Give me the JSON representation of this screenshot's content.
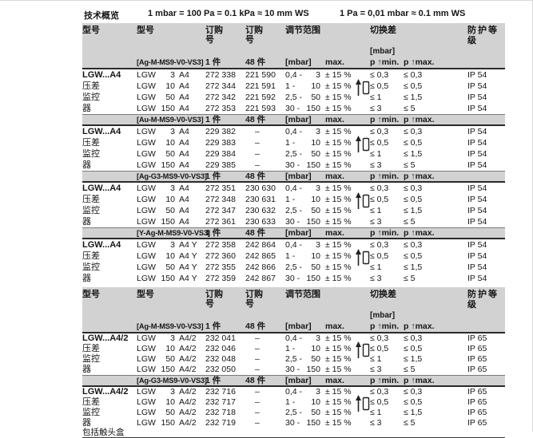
{
  "page": {
    "title": "技术概览",
    "conversion1": "1 mbar = 100 Pa = 0.1 kPa ≈ 10 mm WS",
    "conversion2": "1 Pa = 0,01 mbar ≈ 0.1 mm WS"
  },
  "colors": {
    "band_gray": "#d2d2d2",
    "rule_dark": "#2a2a2a",
    "text": "#161616"
  },
  "header": {
    "col_model_group": "型号",
    "col_model": "型号",
    "col_order": "订购号",
    "col_range": "调节范围",
    "col_diff": "切换差",
    "col_protection": "防护等级",
    "qty_single": "1 件",
    "qty_pack": "48 件",
    "diff_unit": "[mbar]",
    "range_unit": "[mbar]",
    "range_max": "max.",
    "p_min": "p ↑min.",
    "p_max": "p ↑max.",
    "icon": "pressure-rise-switch-icon"
  },
  "sections": [
    {
      "blocks": [
        {
          "code": "[Ag-M-MS9-V0-VS3]",
          "group_label": "LGW...A4",
          "group_sub": [
            "压差",
            "监控",
            "器"
          ],
          "rows": [
            {
              "series": "LGW",
              "size": "3",
              "variant": "A4",
              "order1": "272 338",
              "order2": "221 590",
              "range_lo": "0,4",
              "range_hi": "3",
              "tolerance": "± 15 %",
              "diff_min": "≤ 0,3",
              "diff_max": "≤ 0,3",
              "protection": "IP 54"
            },
            {
              "series": "LGW",
              "size": "10",
              "variant": "A4",
              "order1": "272 344",
              "order2": "221 591",
              "range_lo": "1",
              "range_hi": "10",
              "tolerance": "± 15 %",
              "diff_min": "≤ 0,5",
              "diff_max": "≤ 0,5",
              "protection": "IP 54"
            },
            {
              "series": "LGW",
              "size": "50",
              "variant": "A4",
              "order1": "272 342",
              "order2": "221 592",
              "range_lo": "2,5",
              "range_hi": "50",
              "tolerance": "± 15 %",
              "diff_min": "≤ 1",
              "diff_max": "≤ 1,5",
              "protection": "IP 54"
            },
            {
              "series": "LGW",
              "size": "150",
              "variant": "A4",
              "order1": "272 353",
              "order2": "221 593",
              "range_lo": "30",
              "range_hi": "150",
              "tolerance": "± 15 %",
              "diff_min": "≤ 3",
              "diff_max": "≤ 5",
              "protection": "IP 54"
            }
          ]
        },
        {
          "code": "[Au-M-MS9-V0-VS3]",
          "group_label": "LGW...A4",
          "group_sub": [
            "压差",
            "监控",
            "器"
          ],
          "rows": [
            {
              "series": "LGW",
              "size": "3",
              "variant": "A4",
              "order1": "229 382",
              "order2": "–",
              "range_lo": "0,4",
              "range_hi": "3",
              "tolerance": "± 15 %",
              "diff_min": "≤ 0,3",
              "diff_max": "≤ 0,3",
              "protection": "IP 54"
            },
            {
              "series": "LGW",
              "size": "10",
              "variant": "A4",
              "order1": "229 383",
              "order2": "–",
              "range_lo": "1",
              "range_hi": "10",
              "tolerance": "± 15 %",
              "diff_min": "≤ 0,5",
              "diff_max": "≤ 0,5",
              "protection": "IP 54"
            },
            {
              "series": "LGW",
              "size": "50",
              "variant": "A4",
              "order1": "229 384",
              "order2": "–",
              "range_lo": "2,5",
              "range_hi": "50",
              "tolerance": "± 15 %",
              "diff_min": "≤ 1",
              "diff_max": "≤ 1,5",
              "protection": "IP 54"
            },
            {
              "series": "LGW",
              "size": "150",
              "variant": "A4",
              "order1": "229 385",
              "order2": "–",
              "range_lo": "30",
              "range_hi": "150",
              "tolerance": "± 15 %",
              "diff_min": "≤ 3",
              "diff_max": "≤ 5",
              "protection": "IP 54"
            }
          ]
        },
        {
          "code": "[Ag-G3-MS9-V0-VS3]",
          "group_label": "LGW...A4",
          "group_sub": [
            "压差",
            "监控",
            "器"
          ],
          "rows": [
            {
              "series": "LGW",
              "size": "3",
              "variant": "A4",
              "order1": "272 351",
              "order2": "230 630",
              "range_lo": "0,4",
              "range_hi": "3",
              "tolerance": "± 15 %",
              "diff_min": "≤ 0,3",
              "diff_max": "≤ 0,3",
              "protection": "IP 54"
            },
            {
              "series": "LGW",
              "size": "10",
              "variant": "A4",
              "order1": "272 348",
              "order2": "230 631",
              "range_lo": "1",
              "range_hi": "10",
              "tolerance": "± 15 %",
              "diff_min": "≤ 0,5",
              "diff_max": "≤ 0,5",
              "protection": "IP 54"
            },
            {
              "series": "LGW",
              "size": "50",
              "variant": "A4",
              "order1": "272 347",
              "order2": "230 632",
              "range_lo": "2,5",
              "range_hi": "50",
              "tolerance": "± 15 %",
              "diff_min": "≤ 1",
              "diff_max": "≤ 1,5",
              "protection": "IP 54"
            },
            {
              "series": "LGW",
              "size": "150",
              "variant": "A4",
              "order1": "272 361",
              "order2": "230 633",
              "range_lo": "30",
              "range_hi": "150",
              "tolerance": "± 15 %",
              "diff_min": "≤ 3",
              "diff_max": "≤ 5",
              "protection": "IP 54"
            }
          ]
        },
        {
          "code": "[Y-Ag-M-MS9-V0-VS3]",
          "group_label": "LGW...A4",
          "group_sub": [
            "压差",
            "监控",
            "器"
          ],
          "rows": [
            {
              "series": "LGW",
              "size": "3",
              "variant": "A4 Y",
              "order1": "272 358",
              "order2": "242 864",
              "range_lo": "0,4",
              "range_hi": "3",
              "tolerance": "± 15 %",
              "diff_min": "≤ 0,3",
              "diff_max": "≤ 0,3",
              "protection": "IP 54"
            },
            {
              "series": "LGW",
              "size": "10",
              "variant": "A4 Y",
              "order1": "272 360",
              "order2": "242 865",
              "range_lo": "1",
              "range_hi": "10",
              "tolerance": "± 15 %",
              "diff_min": "≤ 0,5",
              "diff_max": "≤ 0,5",
              "protection": "IP 54"
            },
            {
              "series": "LGW",
              "size": "50",
              "variant": "A4 Y",
              "order1": "272 355",
              "order2": "242 866",
              "range_lo": "2,5",
              "range_hi": "50",
              "tolerance": "± 15 %",
              "diff_min": "≤ 1",
              "diff_max": "≤ 1,5",
              "protection": "IP 54"
            },
            {
              "series": "LGW",
              "size": "150",
              "variant": "A4 Y",
              "order1": "272 359",
              "order2": "242 867",
              "range_lo": "30",
              "range_hi": "150",
              "tolerance": "± 15 %",
              "diff_min": "≤ 3",
              "diff_max": "≤ 5",
              "protection": "IP 54"
            }
          ]
        }
      ]
    },
    {
      "blocks": [
        {
          "code": "[Ag-M-MS9-V0-VS3]",
          "group_label": "LGW...A4/2",
          "group_sub": [
            "压差",
            "监控",
            "器"
          ],
          "rows": [
            {
              "series": "LGW",
              "size": "3",
              "variant": "A4/2",
              "order1": "232 041",
              "order2": "–",
              "range_lo": "0,4",
              "range_hi": "3",
              "tolerance": "± 15 %",
              "diff_min": "≤ 0,3",
              "diff_max": "≤ 0,3",
              "protection": "IP 65"
            },
            {
              "series": "LGW",
              "size": "10",
              "variant": "A4/2",
              "order1": "232 046",
              "order2": "–",
              "range_lo": "1",
              "range_hi": "10",
              "tolerance": "± 15 %",
              "diff_min": "≤ 0,5",
              "diff_max": "≤ 0,5",
              "protection": "IP 65"
            },
            {
              "series": "LGW",
              "size": "50",
              "variant": "A4/2",
              "order1": "232 048",
              "order2": "–",
              "range_lo": "2,5",
              "range_hi": "50",
              "tolerance": "± 15 %",
              "diff_min": "≤ 1",
              "diff_max": "≤ 1,5",
              "protection": "IP 65"
            },
            {
              "series": "LGW",
              "size": "150",
              "variant": "A4/2",
              "order1": "232 050",
              "order2": "–",
              "range_lo": "30",
              "range_hi": "150",
              "tolerance": "± 15 %",
              "diff_min": "≤ 3",
              "diff_max": "≤ 5",
              "protection": "IP 65"
            }
          ]
        },
        {
          "code": "[Ag-G3-MS9-V0-VS3]",
          "group_label": "LGW...A4/2",
          "group_sub": [
            "压差",
            "监控",
            "器"
          ],
          "note": "包括触头盒",
          "rows": [
            {
              "series": "LGW",
              "size": "3",
              "variant": "A4/2",
              "order1": "232 716",
              "order2": "–",
              "range_lo": "0,4",
              "range_hi": "3",
              "tolerance": "± 15 %",
              "diff_min": "≤ 0,3",
              "diff_max": "≤ 0,3",
              "protection": "IP 65"
            },
            {
              "series": "LGW",
              "size": "10",
              "variant": "A4/2",
              "order1": "232 717",
              "order2": "–",
              "range_lo": "1",
              "range_hi": "10",
              "tolerance": "± 15 %",
              "diff_min": "≤ 0,5",
              "diff_max": "≤ 0,5",
              "protection": "IP 65"
            },
            {
              "series": "LGW",
              "size": "50",
              "variant": "A4/2",
              "order1": "232 718",
              "order2": "–",
              "range_lo": "2,5",
              "range_hi": "50",
              "tolerance": "± 15 %",
              "diff_min": "≤ 1",
              "diff_max": "≤ 1,5",
              "protection": "IP 65"
            },
            {
              "series": "LGW",
              "size": "150",
              "variant": "A4/2",
              "order1": "232 719",
              "order2": "–",
              "range_lo": "30",
              "range_hi": "150",
              "tolerance": "± 15 %",
              "diff_min": "≤ 3",
              "diff_max": "≤ 5",
              "protection": "IP 65"
            }
          ]
        }
      ]
    }
  ]
}
